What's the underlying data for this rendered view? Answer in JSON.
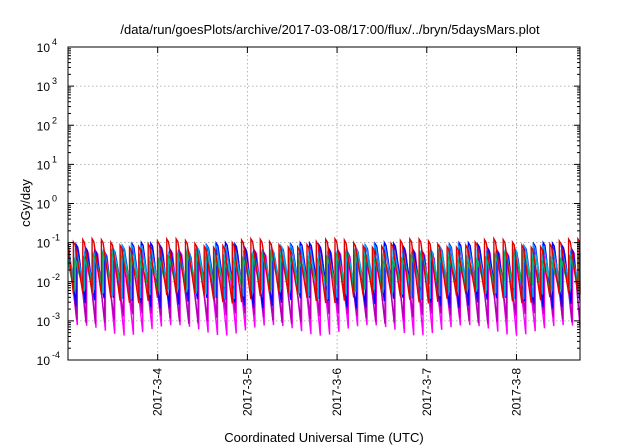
{
  "chart_data": {
    "type": "line",
    "title": "/data/run/goesPlots/archive/2017-03-08/17:00/flux/../bryn/5daysMars.plot",
    "xlabel": "Coordinated Universal Time (UTC)",
    "ylabel": "cGy/day",
    "y_scale": "log",
    "ylim": [
      0.0001,
      10000
    ],
    "xlim": [
      "2017-03-03 00:00",
      "2017-03-08 17:00"
    ],
    "grid": true,
    "x_ticks": [
      {
        "label": "2017-3-4",
        "value": "2017-03-04 00:00"
      },
      {
        "label": "2017-3-5",
        "value": "2017-03-05 00:00"
      },
      {
        "label": "2017-3-6",
        "value": "2017-03-06 00:00"
      },
      {
        "label": "2017-3-7",
        "value": "2017-03-07 00:00"
      },
      {
        "label": "2017-3-8",
        "value": "2017-03-08 00:00"
      }
    ],
    "y_ticks": [
      {
        "base": "10",
        "exp": "-4",
        "value": 0.0001
      },
      {
        "base": "10",
        "exp": "-3",
        "value": 0.001
      },
      {
        "base": "10",
        "exp": "-2",
        "value": 0.01
      },
      {
        "base": "10",
        "exp": "-1",
        "value": 0.1
      },
      {
        "base": "10",
        "exp": "0",
        "value": 1
      },
      {
        "base": "10",
        "exp": "1",
        "value": 10
      },
      {
        "base": "10",
        "exp": "2",
        "value": 100
      },
      {
        "base": "10",
        "exp": "3",
        "value": 1000
      },
      {
        "base": "10",
        "exp": "4",
        "value": 10000
      }
    ],
    "oscillation_period_hours": 2.5,
    "series": [
      {
        "color": "#ff00ff",
        "peak": 0.05,
        "trough": 0.0006
      },
      {
        "color": "#b000b0",
        "peak": 0.06,
        "trough": 0.0012
      },
      {
        "color": "#0000ff",
        "peak": 0.08,
        "trough": 0.003
      },
      {
        "color": "#00a0ff",
        "peak": 0.07,
        "trough": 0.005
      },
      {
        "color": "#00c0c0",
        "peak": 0.05,
        "trough": 0.007
      },
      {
        "color": "#00b050",
        "peak": 0.045,
        "trough": 0.008
      },
      {
        "color": "#e00000",
        "peak": 0.1,
        "trough": 0.004
      }
    ]
  }
}
